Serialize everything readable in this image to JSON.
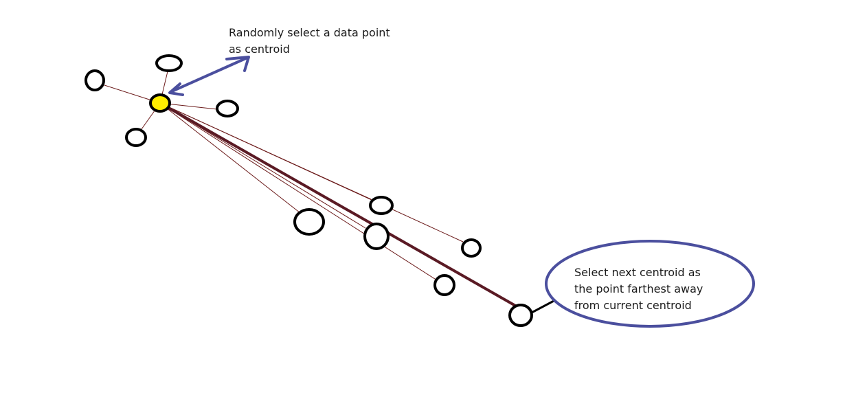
{
  "annotations": {
    "top_note": {
      "line1": "Randomly select a data point",
      "line2": "as centroid"
    },
    "callout": {
      "line1": "Select next centroid as",
      "line2": "the point farthest away",
      "line3": "from  current centroid"
    }
  },
  "colors": {
    "background": "#ffffff",
    "point_outline": "#000000",
    "centroid_fill": "#ffee00",
    "connector_line": "#6b1a1a",
    "farthest_line": "#5a1a24",
    "annotation_arrow": "#4b4f9e",
    "callout_outline": "#4b4f9e",
    "callout_connector": "#000000"
  }
}
